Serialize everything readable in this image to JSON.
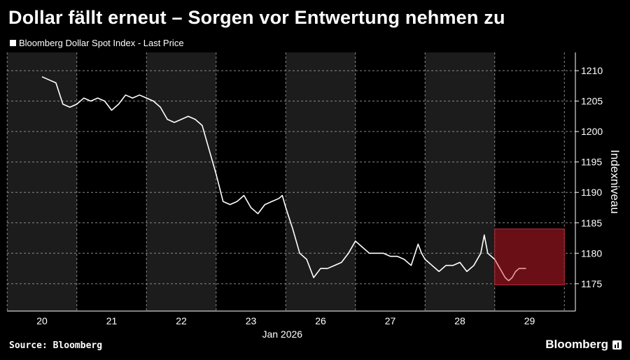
{
  "chart_data": {
    "type": "line",
    "title": "Dollar fällt erneut – Sorgen vor Entwertung nehmen zu",
    "series": [
      {
        "name": "Bloomberg Dollar Spot Index - Last Price",
        "x": [
          0,
          0.1,
          0.2,
          0.3,
          0.4,
          0.5,
          0.6,
          0.7,
          0.8,
          0.9,
          1.0,
          1.1,
          1.2,
          1.3,
          1.4,
          1.5,
          1.6,
          1.7,
          1.8,
          1.9,
          2.0,
          2.1,
          2.2,
          2.3,
          2.4,
          2.5,
          2.6,
          2.7,
          2.8,
          2.9,
          3.0,
          3.1,
          3.2,
          3.3,
          3.4,
          3.45,
          3.5,
          3.6,
          3.7,
          3.8,
          3.9,
          4.0,
          4.1,
          4.2,
          4.3,
          4.4,
          4.5,
          4.6,
          4.7,
          4.8,
          4.9,
          5.0,
          5.1,
          5.2,
          5.3,
          5.4,
          5.45,
          5.5,
          5.6,
          5.7,
          5.8,
          5.9,
          6.0,
          6.1,
          6.2,
          6.3,
          6.35,
          6.4,
          6.45,
          6.5,
          6.55,
          6.6,
          6.65,
          6.7,
          6.75,
          6.8,
          6.85,
          6.9,
          6.95
        ],
        "values": [
          1209,
          1208.5,
          1208,
          1204.5,
          1204,
          1204.5,
          1205.5,
          1205,
          1205.5,
          1205,
          1203.5,
          1204.5,
          1206,
          1205.5,
          1206,
          1205.5,
          1205,
          1204,
          1202,
          1201.5,
          1202,
          1202.5,
          1202,
          1201,
          1197,
          1193,
          1188.5,
          1188,
          1188.5,
          1189.5,
          1187.5,
          1186.5,
          1188,
          1188.5,
          1189,
          1189.5,
          1187.5,
          1184,
          1180,
          1179,
          1176,
          1177.5,
          1177.5,
          1178,
          1178.5,
          1180,
          1182,
          1181,
          1180,
          1180,
          1180,
          1179.5,
          1179.5,
          1179,
          1178,
          1181.5,
          1180,
          1179,
          1178,
          1177,
          1178,
          1178,
          1178.5,
          1177,
          1178,
          1180,
          1183,
          1180,
          1179.5,
          1179,
          1178,
          1177,
          1176,
          1175.5,
          1176,
          1177,
          1177.5,
          1177.5,
          1177.5
        ]
      }
    ],
    "x_ticks": [
      {
        "at": 0,
        "label": "20"
      },
      {
        "at": 1,
        "label": "21"
      },
      {
        "at": 2,
        "label": "22"
      },
      {
        "at": 3,
        "label": "23"
      },
      {
        "at": 4,
        "label": "26"
      },
      {
        "at": 5,
        "label": "27"
      },
      {
        "at": 6,
        "label": "28"
      },
      {
        "at": 7,
        "label": "29"
      }
    ],
    "xlabel_sub": "Jan 2026",
    "ylabel": "Indexniveau",
    "ylim": [
      1170.5,
      1213
    ],
    "y_ticks": [
      1175,
      1180,
      1185,
      1190,
      1195,
      1200,
      1205,
      1210
    ],
    "highlight": {
      "x0": 6.5,
      "x1": 7.5,
      "y0": 1174.8,
      "y1": 1184,
      "color": "#6b0f17",
      "line_color": "#e8a0a6"
    },
    "shaded_days": [
      0,
      2,
      4,
      6
    ],
    "grid": true,
    "legend_position": "top-left",
    "colors": {
      "line": "#ffffff",
      "shade": "#1c1c1c",
      "grid": "#8a8a8a"
    }
  },
  "footer": {
    "source": "Source: Bloomberg",
    "brand": "Bloomberg"
  }
}
